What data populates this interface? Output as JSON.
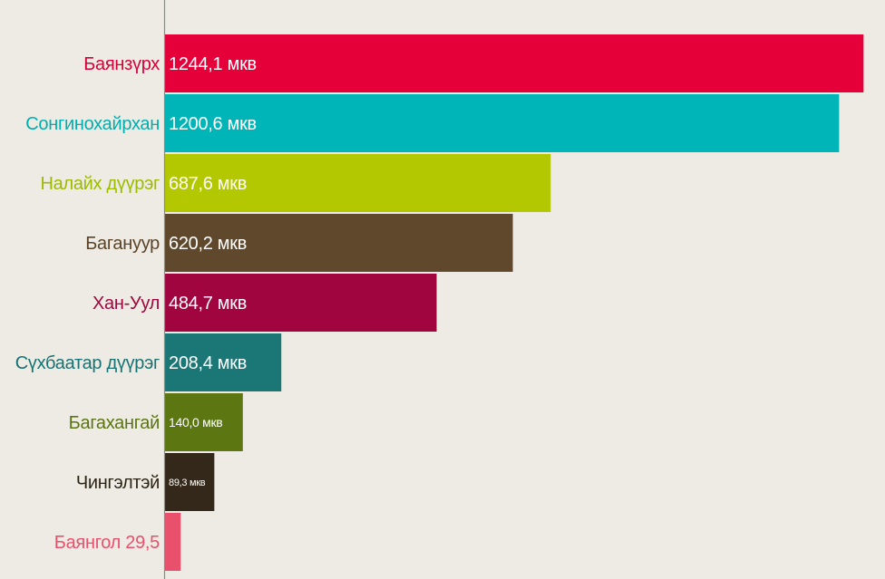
{
  "chart_data": {
    "type": "bar",
    "orientation": "horizontal",
    "grid": false,
    "unit": "мкв",
    "categories": [
      "Баянзүрх",
      "Сонгинохайрхан",
      "Налайх дүүрэг",
      "Багануур",
      "Хан-Уул",
      "Сүхбаатар дүүрэг",
      "Багахангай",
      "Чингэлтэй",
      "Баянгол"
    ],
    "values": [
      1244.1,
      1200.6,
      687.6,
      620.2,
      484.7,
      208.4,
      140.0,
      89.3,
      29.5
    ],
    "value_labels": [
      "1244,1 мкв",
      "1200,6 мкв",
      "687,6 мкв",
      "620,2 мкв",
      "484,7 мкв",
      "208,4 мкв",
      "140,0 мкв",
      "89,3 мкв",
      ""
    ],
    "category_labels": [
      "Баянзүрх",
      "Сонгинохайрхан",
      "Налайх дүүрэг",
      "Багануур",
      "Хан-Уул",
      "Сүхбаатар дүүрэг",
      "Багахангай",
      "Чингэлтэй",
      "Баянгол 29,5"
    ],
    "colors": [
      "#e5003a",
      "#00b5b8",
      "#b3c800",
      "#5f482b",
      "#a1053f",
      "#1b7676",
      "#5c7711",
      "#33281a",
      "#e8506c"
    ],
    "label_colors": [
      "#d50038",
      "#00aeb0",
      "#9dbb00",
      "#5b4328",
      "#a0053f",
      "#177273",
      "#5a7412",
      "#2d2418",
      "#e8506c"
    ],
    "xlim": [
      0,
      1250
    ],
    "axis_color": "#8a8a8a"
  }
}
